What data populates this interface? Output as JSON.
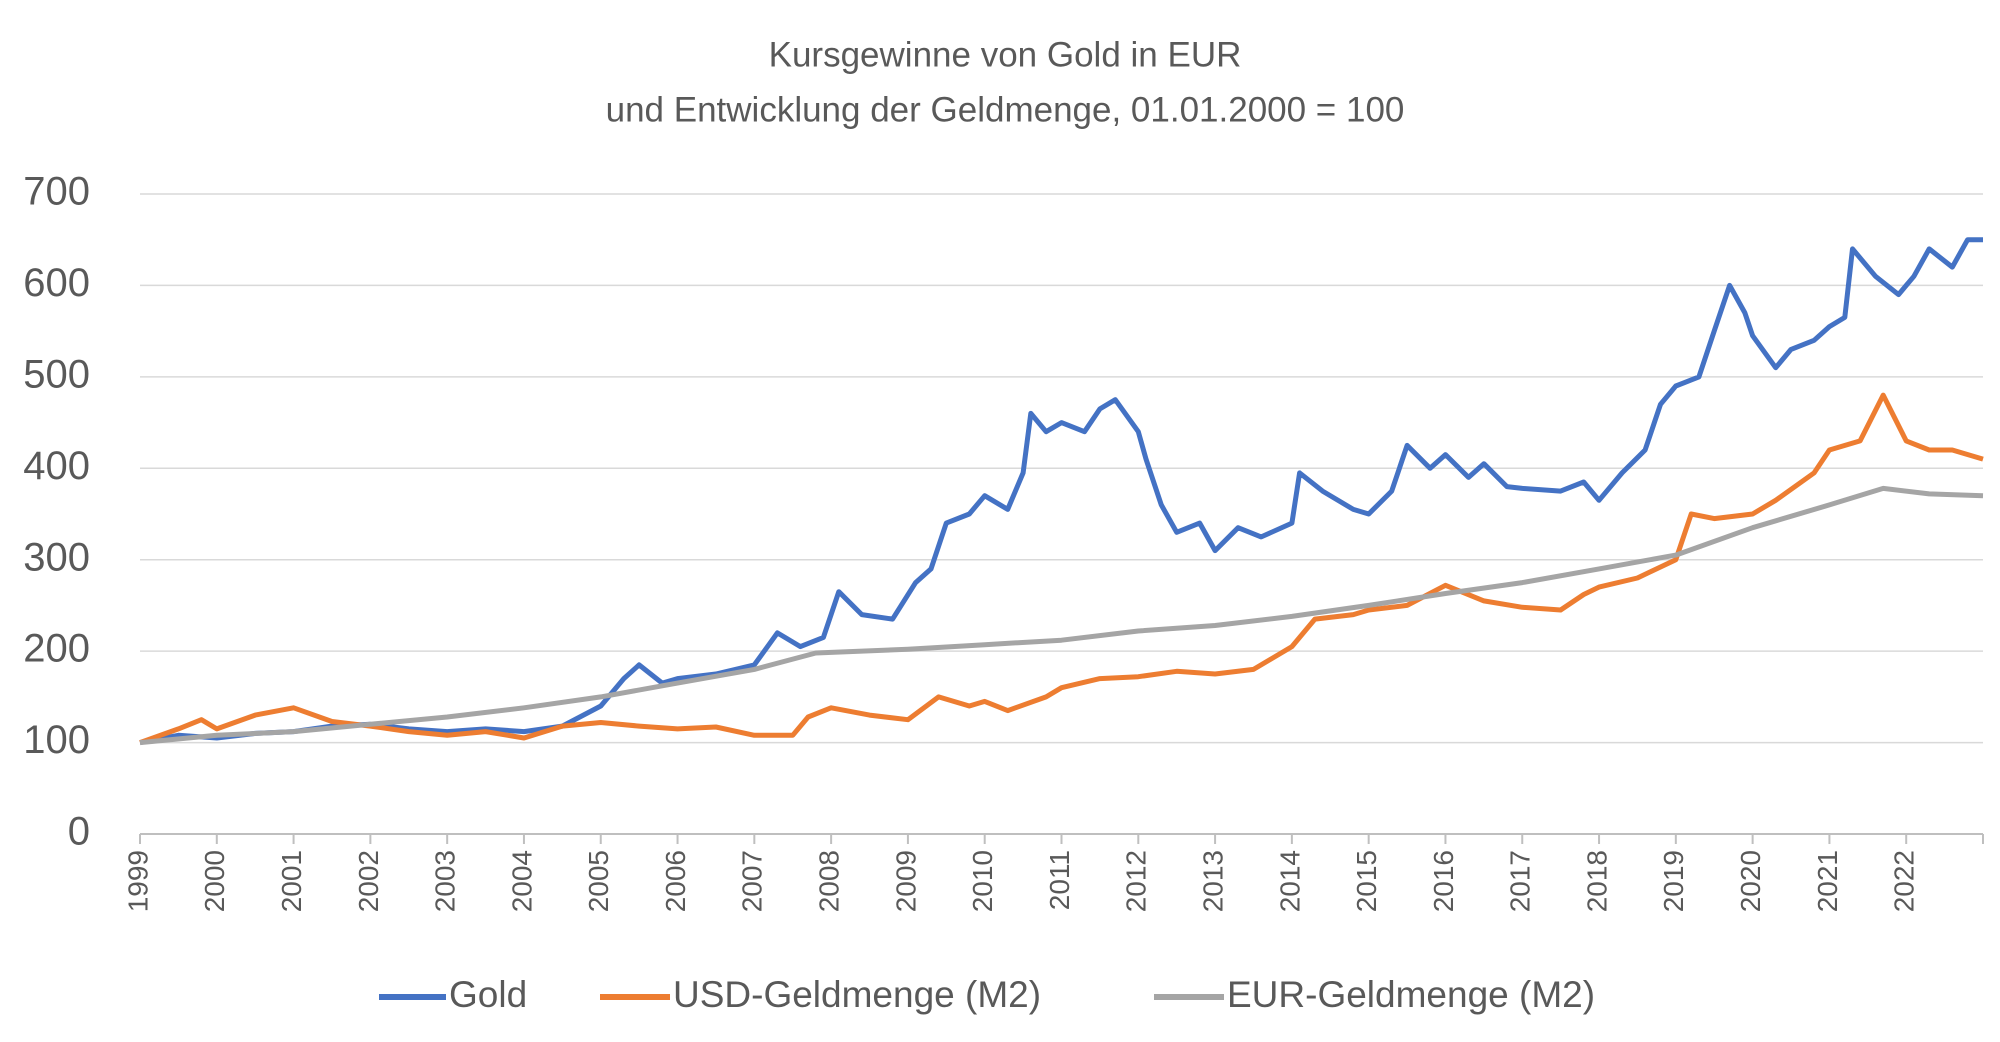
{
  "chart_data": {
    "type": "line",
    "title": "Kursgewinne von Gold in EUR",
    "subtitle": "und Entwicklung der Geldmenge, 01.01.2000 = 100",
    "xlim": [
      1999,
      2023
    ],
    "xticks": [
      1999,
      2000,
      2001,
      2002,
      2003,
      2004,
      2005,
      2006,
      2007,
      2008,
      2009,
      2010,
      2011,
      2012,
      2013,
      2014,
      2015,
      2016,
      2017,
      2018,
      2019,
      2020,
      2021,
      2022
    ],
    "ylim": [
      0,
      700
    ],
    "yticks": [
      0,
      100,
      200,
      300,
      400,
      500,
      600,
      700
    ],
    "grid": true,
    "legend": "bottom",
    "series": [
      {
        "name": "Gold",
        "color": "#4472c4",
        "x": [
          1999.0,
          1999.5,
          2000.0,
          2000.5,
          2001.0,
          2001.5,
          2002.0,
          2002.5,
          2003.0,
          2003.5,
          2004.0,
          2004.5,
          2005.0,
          2005.3,
          2005.5,
          2005.8,
          2006.0,
          2006.5,
          2007.0,
          2007.3,
          2007.6,
          2007.9,
          2008.1,
          2008.4,
          2008.8,
          2009.1,
          2009.3,
          2009.5,
          2009.8,
          2010.0,
          2010.3,
          2010.5,
          2010.6,
          2010.8,
          2011.0,
          2011.3,
          2011.5,
          2011.7,
          2012.0,
          2012.1,
          2012.3,
          2012.5,
          2012.8,
          2013.0,
          2013.3,
          2013.6,
          2014.0,
          2014.1,
          2014.4,
          2014.8,
          2015.0,
          2015.3,
          2015.5,
          2015.8,
          2016.0,
          2016.3,
          2016.5,
          2016.8,
          2017.0,
          2017.5,
          2017.8,
          2018.0,
          2018.3,
          2018.6,
          2018.8,
          2019.0,
          2019.3,
          2019.5,
          2019.7,
          2019.9,
          2020.0,
          2020.3,
          2020.5,
          2020.8,
          2021.0,
          2021.2,
          2021.3,
          2021.6,
          2021.9,
          2022.1,
          2022.3,
          2022.6,
          2022.8,
          2023.0
        ],
        "values": [
          100,
          108,
          105,
          110,
          112,
          118,
          120,
          115,
          112,
          115,
          112,
          118,
          140,
          170,
          185,
          165,
          170,
          175,
          185,
          220,
          205,
          215,
          265,
          240,
          235,
          275,
          290,
          340,
          350,
          370,
          355,
          395,
          460,
          440,
          450,
          440,
          465,
          475,
          440,
          410,
          360,
          330,
          340,
          310,
          335,
          325,
          340,
          395,
          375,
          355,
          350,
          375,
          425,
          400,
          415,
          390,
          405,
          380,
          378,
          375,
          385,
          365,
          395,
          420,
          470,
          490,
          500,
          550,
          600,
          570,
          545,
          510,
          530,
          540,
          555,
          565,
          640,
          610,
          590,
          610,
          640,
          620,
          650,
          650
        ]
      },
      {
        "name": "USD-Geldmenge (M2)",
        "color": "#ed7d31",
        "x": [
          1999.0,
          1999.5,
          1999.8,
          2000.0,
          2000.5,
          2001.0,
          2001.5,
          2002.0,
          2002.5,
          2003.0,
          2003.5,
          2004.0,
          2004.5,
          2005.0,
          2005.5,
          2006.0,
          2006.5,
          2007.0,
          2007.5,
          2007.7,
          2008.0,
          2008.5,
          2009.0,
          2009.4,
          2009.8,
          2010.0,
          2010.3,
          2010.8,
          2011.0,
          2011.5,
          2012.0,
          2012.5,
          2013.0,
          2013.5,
          2014.0,
          2014.3,
          2014.8,
          2015.0,
          2015.5,
          2016.0,
          2016.5,
          2017.0,
          2017.5,
          2017.8,
          2018.0,
          2018.5,
          2019.0,
          2019.2,
          2019.5,
          2020.0,
          2020.3,
          2020.8,
          2021.0,
          2021.4,
          2021.7,
          2022.0,
          2022.3,
          2022.6,
          2023.0
        ],
        "values": [
          100,
          115,
          125,
          115,
          130,
          138,
          123,
          118,
          112,
          108,
          112,
          105,
          118,
          122,
          118,
          115,
          117,
          108,
          108,
          128,
          138,
          130,
          125,
          150,
          140,
          145,
          135,
          150,
          160,
          170,
          172,
          178,
          175,
          180,
          205,
          235,
          240,
          245,
          250,
          272,
          255,
          248,
          245,
          262,
          270,
          280,
          300,
          350,
          345,
          350,
          365,
          395,
          420,
          430,
          480,
          430,
          420,
          420,
          410
        ]
      },
      {
        "name": "EUR-Geldmenge (M2)",
        "color": "#a5a5a5",
        "x": [
          1999,
          2000,
          2001,
          2002,
          2003,
          2004,
          2005,
          2006,
          2007,
          2007.8,
          2009,
          2010,
          2011,
          2012,
          2013,
          2014,
          2015,
          2016,
          2017,
          2018,
          2019,
          2020,
          2021,
          2021.7,
          2022.3,
          2023
        ],
        "values": [
          100,
          108,
          112,
          120,
          128,
          138,
          150,
          165,
          180,
          198,
          202,
          207,
          212,
          222,
          228,
          238,
          250,
          263,
          275,
          290,
          305,
          335,
          360,
          378,
          372,
          370
        ]
      }
    ]
  }
}
